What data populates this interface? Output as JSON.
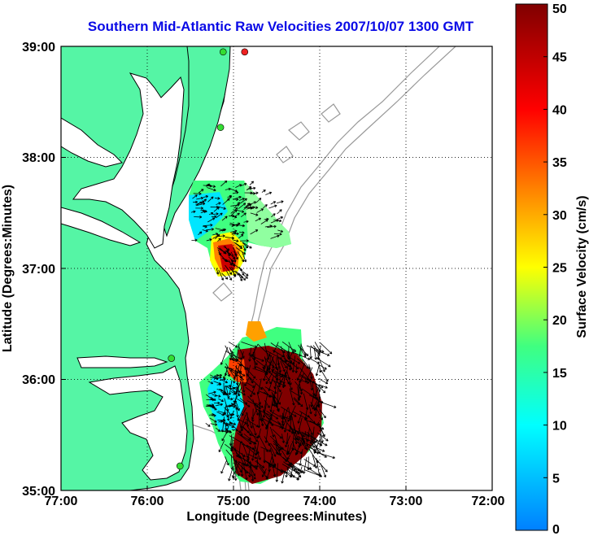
{
  "title": "Southern Mid-Atlantic Raw Velocities 2007/10/07 1300 GMT",
  "map": {
    "x_axis": {
      "label": "Longitude (Degrees:Minutes)",
      "ticks": [
        "77:00",
        "76:00",
        "75:00",
        "74:00",
        "73:00",
        "72:00"
      ],
      "range_deg_west": [
        77,
        72
      ]
    },
    "y_axis": {
      "label": "Latitude (Degrees:Minutes)",
      "ticks": [
        "39:00",
        "38:00",
        "37:00",
        "36:00",
        "35:00"
      ],
      "range_deg_north": [
        35,
        39
      ]
    },
    "grid": "dotted",
    "colors": {
      "land": "#55f5a5",
      "coastline": "#000000",
      "bathymetry": "#999999",
      "vectors": "#000000",
      "station_marker": "#33dd33",
      "station_marker_red": "#ee2222"
    },
    "stations_lonlat": [
      [
        75.12,
        38.95
      ],
      [
        75.15,
        38.27
      ],
      [
        75.72,
        36.19
      ],
      [
        75.62,
        35.22
      ],
      [
        74.87,
        38.95
      ]
    ],
    "velocity_regions": [
      "lower-chesapeake-mouth",
      "cape-hatteras-offshore"
    ]
  },
  "colorbar": {
    "label": "Surface Velocity (cm/s)",
    "ticks": [
      "50",
      "45",
      "40",
      "35",
      "30",
      "25",
      "20",
      "15",
      "10",
      "5",
      "0"
    ],
    "min": 0,
    "max": 50,
    "colors": [
      "#0080ff",
      "#00ffff",
      "#40ff80",
      "#ffff00",
      "#ff8000",
      "#ff0000",
      "#800000"
    ]
  }
}
